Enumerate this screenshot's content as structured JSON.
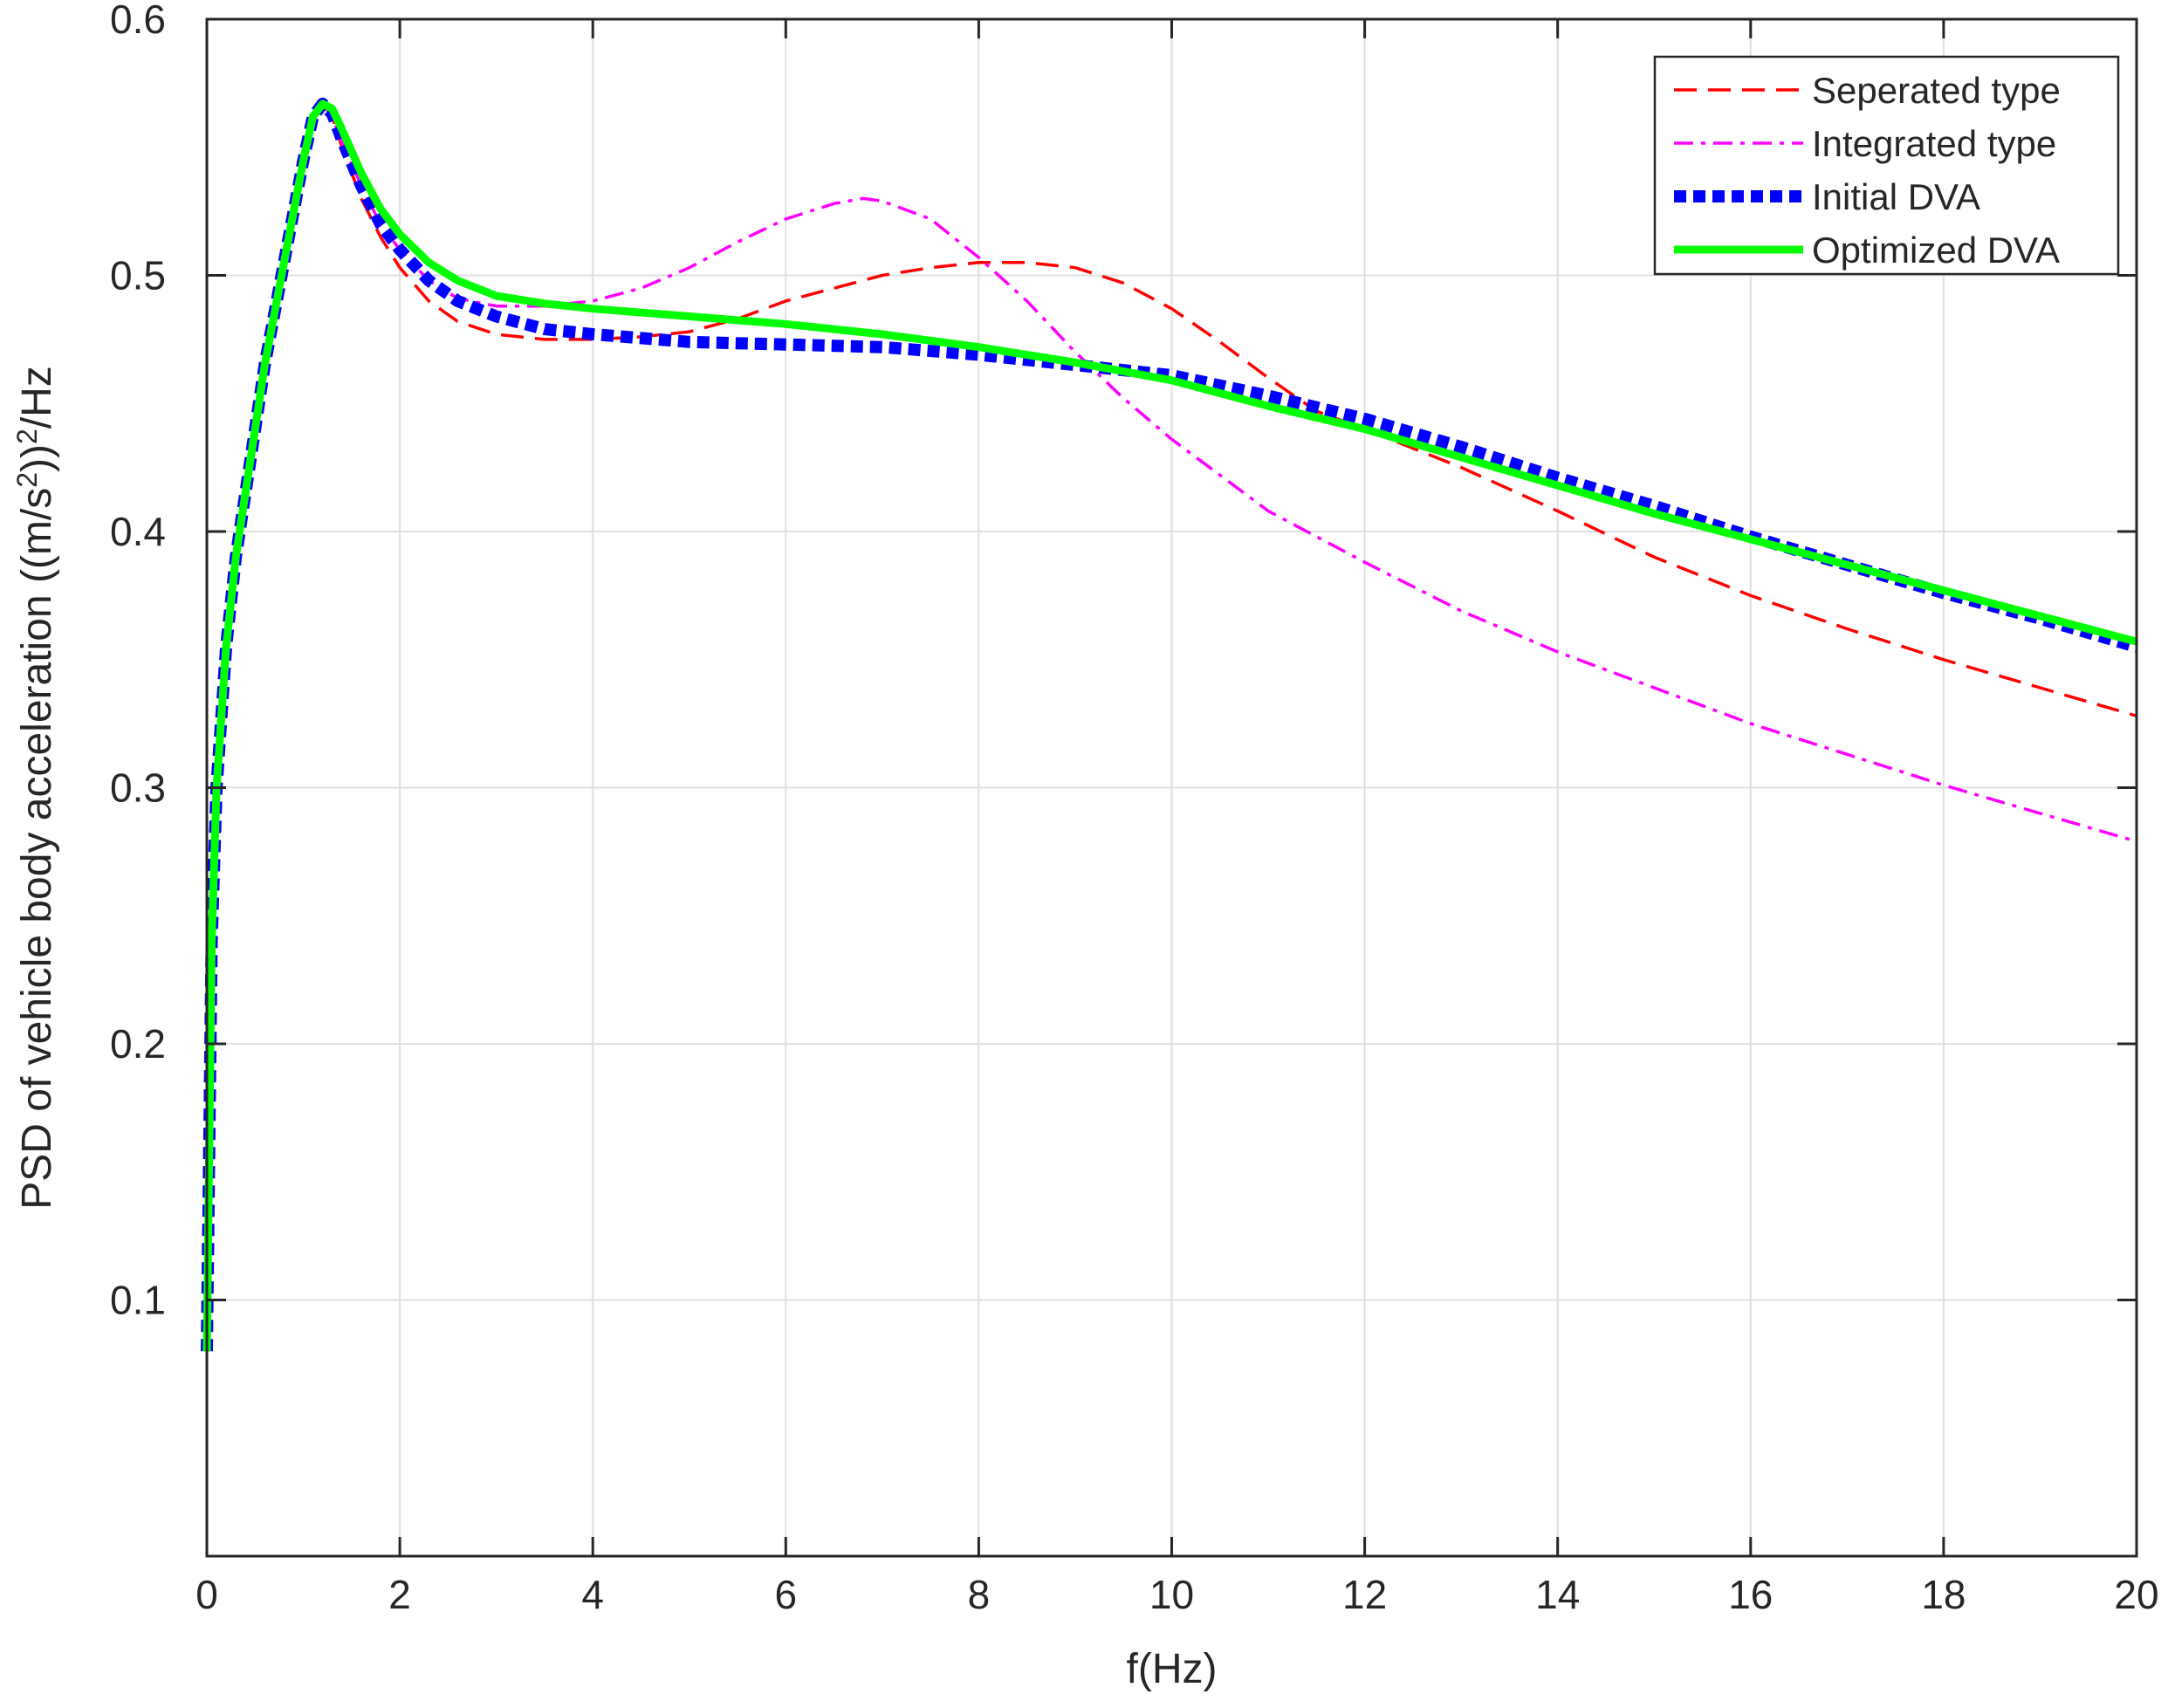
{
  "chart_data": {
    "type": "line",
    "xlabel": "f(Hz)",
    "ylabel": {
      "prefix": "PSD of vehicle body acceleration ((m/s",
      "sup1": "2",
      "middle": "))",
      "sup2": "2",
      "suffix": "/Hz"
    },
    "xlim": [
      0,
      20
    ],
    "ylim": [
      0,
      0.6
    ],
    "xticks": [
      0,
      2,
      4,
      6,
      8,
      10,
      12,
      14,
      16,
      18,
      20
    ],
    "yticks": [
      0.1,
      0.2,
      0.3,
      0.4,
      0.5,
      0.6
    ],
    "xtick_labels": [
      "0",
      "2",
      "4",
      "6",
      "8",
      "10",
      "12",
      "14",
      "16",
      "18",
      "20"
    ],
    "ytick_labels": [
      "0.1",
      "0.2",
      "0.3",
      "0.4",
      "0.5",
      "0.6"
    ],
    "grid": true,
    "legend_position": "top-right",
    "series": [
      {
        "name": "Seperated type",
        "color": "#ff0000",
        "style": "dashed",
        "x": [
          0,
          0.05,
          0.1,
          0.2,
          0.3,
          0.4,
          0.5,
          0.6,
          0.8,
          1.0,
          1.1,
          1.2,
          1.3,
          1.4,
          1.6,
          1.8,
          2.0,
          2.3,
          2.6,
          3.0,
          3.5,
          4.0,
          4.5,
          5.0,
          5.5,
          6.0,
          6.5,
          7.0,
          7.5,
          8.0,
          8.5,
          9.0,
          9.5,
          10.0,
          10.5,
          11.0,
          11.5,
          12.0,
          13.0,
          14.0,
          15.0,
          16.0,
          17.0,
          18.0,
          19.0,
          20.0
        ],
        "y": [
          0.08,
          0.24,
          0.3,
          0.355,
          0.39,
          0.415,
          0.44,
          0.465,
          0.505,
          0.545,
          0.562,
          0.567,
          0.562,
          0.55,
          0.53,
          0.515,
          0.503,
          0.49,
          0.482,
          0.477,
          0.475,
          0.475,
          0.476,
          0.478,
          0.483,
          0.49,
          0.495,
          0.5,
          0.503,
          0.505,
          0.505,
          0.503,
          0.497,
          0.487,
          0.474,
          0.46,
          0.447,
          0.44,
          0.425,
          0.408,
          0.39,
          0.375,
          0.362,
          0.35,
          0.339,
          0.328
        ]
      },
      {
        "name": "Integrated type",
        "color": "#ff00ff",
        "style": "dashdot",
        "x": [
          0,
          0.05,
          0.1,
          0.2,
          0.3,
          0.4,
          0.5,
          0.6,
          0.8,
          1.0,
          1.1,
          1.2,
          1.3,
          1.4,
          1.6,
          1.8,
          2.0,
          2.3,
          2.6,
          3.0,
          3.5,
          4.0,
          4.5,
          5.0,
          5.5,
          6.0,
          6.5,
          6.8,
          7.0,
          7.5,
          8.0,
          8.5,
          9.0,
          9.5,
          10.0,
          10.5,
          11.0,
          12.0,
          13.0,
          14.0,
          15.0,
          16.0,
          17.0,
          18.0,
          19.0,
          20.0
        ],
        "y": [
          0.08,
          0.24,
          0.3,
          0.355,
          0.39,
          0.415,
          0.44,
          0.465,
          0.505,
          0.545,
          0.562,
          0.567,
          0.562,
          0.552,
          0.535,
          0.52,
          0.51,
          0.498,
          0.491,
          0.488,
          0.488,
          0.49,
          0.495,
          0.503,
          0.513,
          0.522,
          0.528,
          0.53,
          0.529,
          0.522,
          0.507,
          0.49,
          0.47,
          0.452,
          0.436,
          0.422,
          0.408,
          0.388,
          0.369,
          0.353,
          0.339,
          0.325,
          0.313,
          0.301,
          0.29,
          0.279
        ]
      },
      {
        "name": "Initial DVA",
        "color": "#0000ff",
        "style": "dotted-thick",
        "x": [
          0,
          0.05,
          0.1,
          0.2,
          0.3,
          0.4,
          0.5,
          0.6,
          0.8,
          1.0,
          1.1,
          1.2,
          1.3,
          1.4,
          1.6,
          1.8,
          2.0,
          2.3,
          2.6,
          3.0,
          3.5,
          4.0,
          5.0,
          6.0,
          7.0,
          8.0,
          9.0,
          10.0,
          11.0,
          12.0,
          13.0,
          14.0,
          15.0,
          16.0,
          17.0,
          18.0,
          19.0,
          20.0
        ],
        "y": [
          0.08,
          0.24,
          0.3,
          0.355,
          0.39,
          0.415,
          0.44,
          0.465,
          0.505,
          0.545,
          0.562,
          0.567,
          0.563,
          0.553,
          0.535,
          0.52,
          0.51,
          0.498,
          0.49,
          0.484,
          0.479,
          0.477,
          0.474,
          0.473,
          0.472,
          0.469,
          0.465,
          0.461,
          0.453,
          0.444,
          0.433,
          0.421,
          0.41,
          0.398,
          0.387,
          0.376,
          0.366,
          0.355
        ]
      },
      {
        "name": "Optimized DVA",
        "color": "#00ff00",
        "style": "solid",
        "x": [
          0,
          0.05,
          0.1,
          0.2,
          0.3,
          0.4,
          0.5,
          0.6,
          0.8,
          1.0,
          1.1,
          1.2,
          1.3,
          1.4,
          1.6,
          1.8,
          2.0,
          2.3,
          2.6,
          3.0,
          3.5,
          4.0,
          5.0,
          6.0,
          7.0,
          8.0,
          9.0,
          10.0,
          11.0,
          12.0,
          13.0,
          14.0,
          15.0,
          16.0,
          17.0,
          18.0,
          19.0,
          20.0
        ],
        "y": [
          0.08,
          0.24,
          0.3,
          0.355,
          0.39,
          0.415,
          0.44,
          0.465,
          0.505,
          0.545,
          0.562,
          0.567,
          0.565,
          0.557,
          0.54,
          0.526,
          0.516,
          0.505,
          0.498,
          0.492,
          0.489,
          0.487,
          0.484,
          0.481,
          0.477,
          0.472,
          0.466,
          0.459,
          0.449,
          0.44,
          0.429,
          0.418,
          0.407,
          0.397,
          0.387,
          0.377,
          0.367,
          0.357
        ]
      }
    ]
  }
}
